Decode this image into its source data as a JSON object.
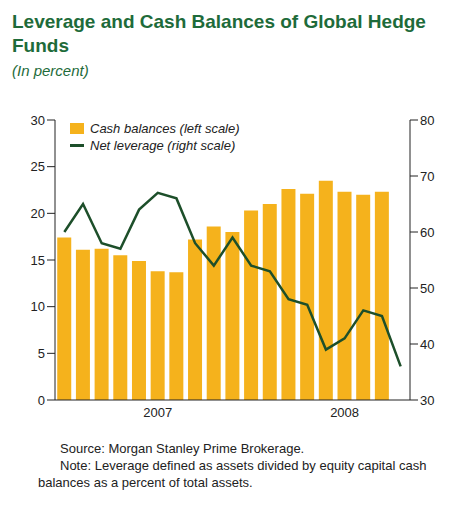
{
  "chart_data": {
    "type": "bar",
    "title": "Leverage and Cash Balances of Global Hedge Funds",
    "subtitle": "(In percent)",
    "categories": [
      null,
      null,
      null,
      null,
      null,
      "2007",
      null,
      null,
      null,
      null,
      null,
      null,
      null,
      null,
      null,
      "2008",
      null,
      null,
      null
    ],
    "series": [
      {
        "name": "Cash balances (left scale)",
        "type": "bar",
        "color": "#f5b21c",
        "values": [
          17.4,
          16.1,
          16.2,
          15.5,
          14.9,
          13.8,
          13.7,
          17.2,
          18.6,
          18.0,
          20.3,
          21.0,
          22.6,
          22.1,
          23.5,
          22.3,
          22.0,
          22.3,
          null
        ]
      },
      {
        "name": "Net leverage (right scale)",
        "type": "line",
        "color": "#1d4f2a",
        "axis": "y2",
        "values": [
          60,
          65,
          58,
          57,
          64,
          67,
          66,
          58,
          54,
          59,
          54,
          53,
          48,
          47,
          39,
          41,
          46,
          45,
          36
        ]
      }
    ],
    "ylim": [
      0,
      30
    ],
    "yticks": [
      0,
      5,
      10,
      15,
      20,
      25,
      30
    ],
    "y2lim": [
      30,
      80
    ],
    "y2ticks": [
      30,
      40,
      50,
      60,
      70,
      80
    ],
    "legend": "upper left",
    "annotations": [
      "Source: Morgan Stanley Prime Brokerage.",
      "Note: Leverage defined as assets divided by equity capital cash balances as a percent of total assets."
    ]
  }
}
